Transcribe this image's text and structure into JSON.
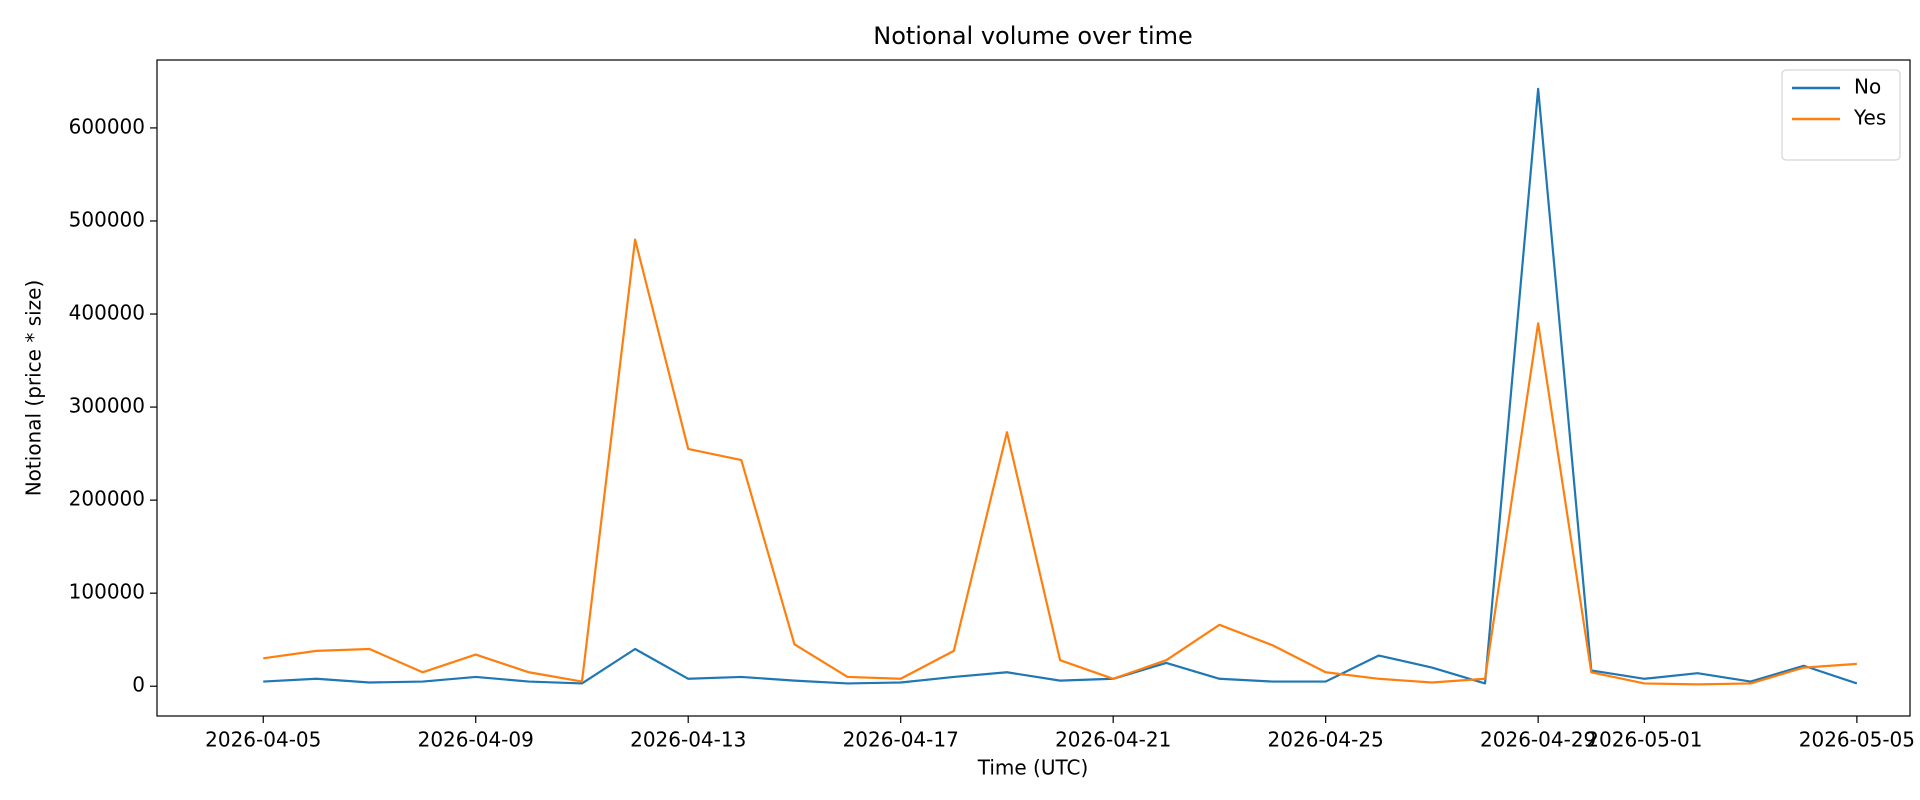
{
  "chart_data": {
    "type": "line",
    "title": "Notional volume over time",
    "x_label": "Time (UTC)",
    "y_label": "Notional (price * size)",
    "x": [
      "2026-04-05",
      "2026-04-06",
      "2026-04-07",
      "2026-04-08",
      "2026-04-09",
      "2026-04-10",
      "2026-04-11",
      "2026-04-12",
      "2026-04-13",
      "2026-04-14",
      "2026-04-15",
      "2026-04-16",
      "2026-04-17",
      "2026-04-18",
      "2026-04-19",
      "2026-04-20",
      "2026-04-21",
      "2026-04-22",
      "2026-04-23",
      "2026-04-24",
      "2026-04-25",
      "2026-04-26",
      "2026-04-27",
      "2026-04-28",
      "2026-04-29",
      "2026-04-30",
      "2026-05-01",
      "2026-05-02",
      "2026-05-03",
      "2026-05-04",
      "2026-05-05"
    ],
    "series": [
      {
        "name": "No",
        "color": "#1f77b4",
        "values": [
          5000,
          8000,
          4000,
          5000,
          10000,
          5000,
          3000,
          40000,
          8000,
          10000,
          6000,
          3000,
          4000,
          10000,
          15000,
          6000,
          8000,
          25000,
          8000,
          5000,
          5000,
          33000,
          20000,
          3000,
          642000,
          17000,
          8000,
          14000,
          5000,
          22000,
          3000
        ]
      },
      {
        "name": "Yes",
        "color": "#ff7f0e",
        "values": [
          30000,
          38000,
          40000,
          15000,
          34000,
          15000,
          5000,
          480000,
          255000,
          243000,
          45000,
          10000,
          8000,
          38000,
          273000,
          28000,
          8000,
          28000,
          66000,
          44000,
          15000,
          8000,
          4000,
          8000,
          390000,
          15000,
          3000,
          2000,
          3000,
          20000,
          24000
        ]
      }
    ],
    "xlim": [
      "2026-04-03",
      "2026-05-06"
    ],
    "xticks": [
      "2026-04-05",
      "2026-04-09",
      "2026-04-13",
      "2026-04-17",
      "2026-04-21",
      "2026-04-25",
      "2026-04-29",
      "2026-05-01",
      "2026-05-05"
    ],
    "ylim": [
      -32000,
      673000
    ],
    "yticks": [
      0,
      100000,
      200000,
      300000,
      400000,
      500000,
      600000
    ],
    "legend": "upper right",
    "grid": false
  }
}
